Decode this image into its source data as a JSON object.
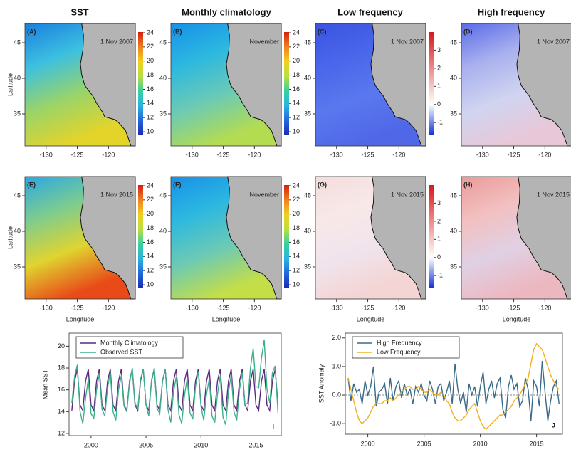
{
  "column_titles": [
    "SST",
    "Monthly climatology",
    "Low frequency",
    "High frequency"
  ],
  "chart_data": [
    {
      "type": "map",
      "label": "(A)",
      "date": "1 Nov 2007",
      "ylabel": "Latitude",
      "xlim": [
        -133.4,
        -115.7
      ],
      "ylim": [
        30.5,
        47.7
      ],
      "xticks": [
        -130,
        -125,
        -120
      ],
      "yticks": [
        35,
        40,
        45
      ],
      "field_colors": [
        "#1c7ee0",
        "#3cc0e0",
        "#9ad468",
        "#e4d42a"
      ],
      "colorbar": {
        "lim": [
          9.5,
          24.1
        ],
        "ticks": [
          10,
          12,
          14,
          16,
          18,
          20,
          22,
          24
        ],
        "colors": [
          "#1a2ab0",
          "#2466e0",
          "#28b4e0",
          "#38d0a0",
          "#b8e040",
          "#f0d020",
          "#f08020",
          "#d02010"
        ]
      }
    },
    {
      "type": "map",
      "label": "(B)",
      "date": "November",
      "xlim": [
        -133.4,
        -115.7
      ],
      "ylim": [
        30.5,
        47.7
      ],
      "xticks": [
        -130,
        -125,
        -120
      ],
      "yticks": [
        35,
        40,
        45
      ],
      "field_colors": [
        "#1890e8",
        "#2cb8e0",
        "#6ccab4",
        "#b4dc50"
      ],
      "colorbar": {
        "lim": [
          9.5,
          24.1
        ],
        "ticks": [
          10,
          12,
          14,
          16,
          18,
          20,
          22,
          24
        ],
        "colors": [
          "#1a2ab0",
          "#2466e0",
          "#28b4e0",
          "#38d0a0",
          "#b8e040",
          "#f0d020",
          "#f08020",
          "#d02010"
        ]
      }
    },
    {
      "type": "map",
      "label": "(C)",
      "date": "1 Nov 2007",
      "xlim": [
        -133.4,
        -115.7
      ],
      "ylim": [
        30.5,
        47.7
      ],
      "xticks": [
        -130,
        -125,
        -120
      ],
      "yticks": [
        35,
        40,
        45
      ],
      "field_colors": [
        "#3a54e0",
        "#4a66ea",
        "#5a78ee",
        "#5068e8"
      ],
      "colorbar": {
        "lim": [
          -1.7,
          4.0
        ],
        "ticks": [
          -1,
          0,
          1,
          2,
          3
        ],
        "colors": [
          "#1030d8",
          "#ffffff",
          "#d81818"
        ],
        "stops": [
          -1.7,
          0,
          4.0
        ]
      }
    },
    {
      "type": "map",
      "label": "(D)",
      "date": "1 Nov 2007",
      "xlim": [
        -133.4,
        -115.7
      ],
      "ylim": [
        30.5,
        47.7
      ],
      "xticks": [
        -130,
        -125,
        -120
      ],
      "yticks": [
        35,
        40,
        45
      ],
      "field_colors": [
        "#5a6ae8",
        "#a8b0ee",
        "#d0d4f0",
        "#e8c8d8"
      ],
      "colorbar": {
        "lim": [
          -1.7,
          4.0
        ],
        "colors": [
          "#1030d8",
          "#ffffff",
          "#d81818"
        ],
        "stops": [
          -1.7,
          0,
          4.0
        ]
      }
    },
    {
      "type": "map",
      "label": "(E)",
      "date": "1 Nov 2015",
      "ylabel": "Latitude",
      "xlabel": "Longitude",
      "xlim": [
        -133.4,
        -115.7
      ],
      "ylim": [
        30.5,
        47.7
      ],
      "xticks": [
        -130,
        -125,
        -120
      ],
      "yticks": [
        35,
        40,
        45
      ],
      "field_colors": [
        "#2aa8e4",
        "#7ccc90",
        "#e0d430",
        "#e84a18"
      ],
      "colorbar": {
        "lim": [
          9.5,
          24.1
        ],
        "ticks": [
          10,
          12,
          14,
          16,
          18,
          20,
          22,
          24
        ],
        "colors": [
          "#1a2ab0",
          "#2466e0",
          "#28b4e0",
          "#38d0a0",
          "#b8e040",
          "#f0d020",
          "#f08020",
          "#d02010"
        ]
      }
    },
    {
      "type": "map",
      "label": "(F)",
      "date": "November",
      "xlabel": "Longitude",
      "xlim": [
        -133.4,
        -115.7
      ],
      "ylim": [
        30.5,
        47.7
      ],
      "xticks": [
        -130,
        -125,
        -120
      ],
      "yticks": [
        35,
        40,
        45
      ],
      "field_colors": [
        "#1890e8",
        "#2cb8e0",
        "#6ccab4",
        "#c4de48"
      ],
      "colorbar": {
        "lim": [
          9.5,
          24.1
        ],
        "ticks": [
          10,
          12,
          14,
          16,
          18,
          20,
          22,
          24
        ],
        "colors": [
          "#1a2ab0",
          "#2466e0",
          "#28b4e0",
          "#38d0a0",
          "#b8e040",
          "#f0d020",
          "#f08020",
          "#d02010"
        ]
      }
    },
    {
      "type": "map",
      "label": "(G)",
      "date": "1 Nov 2015",
      "xlabel": "Longitude",
      "xlim": [
        -133.4,
        -115.7
      ],
      "ylim": [
        30.5,
        47.7
      ],
      "xticks": [
        -130,
        -125,
        -120
      ],
      "yticks": [
        35,
        40,
        45
      ],
      "field_colors": [
        "#f4dcdc",
        "#f8e8e8",
        "#f0e4ec",
        "#f4d4d4"
      ],
      "colorbar": {
        "lim": [
          -1.7,
          4.0
        ],
        "ticks": [
          -1,
          0,
          1,
          2,
          3
        ],
        "colors": [
          "#1030d8",
          "#ffffff",
          "#d81818"
        ],
        "stops": [
          -1.7,
          0,
          4.0
        ]
      }
    },
    {
      "type": "map",
      "label": "(H)",
      "date": "1 Nov 2015",
      "xlabel": "Longitude",
      "xlim": [
        -133.4,
        -115.7
      ],
      "ylim": [
        30.5,
        47.7
      ],
      "xticks": [
        -130,
        -125,
        -120
      ],
      "yticks": [
        35,
        40,
        45
      ],
      "field_colors": [
        "#ec9a9a",
        "#f2c0c0",
        "#e0d0e4",
        "#ecb8c0"
      ],
      "colorbar": {
        "lim": [
          -1.7,
          4.0
        ],
        "colors": [
          "#1030d8",
          "#ffffff",
          "#d81818"
        ],
        "stops": [
          -1.7,
          0,
          4.0
        ]
      }
    },
    {
      "type": "line",
      "label": "I",
      "ylabel": "Mean SST",
      "xlim": [
        1998,
        2017.3
      ],
      "ylim": [
        11.8,
        21.2
      ],
      "xticks": [
        2000,
        2005,
        2010,
        2015
      ],
      "yticks": [
        12,
        14,
        16,
        18,
        20
      ],
      "legend": "top-left",
      "x": [
        1998.25,
        1998.5,
        1998.75,
        1999,
        1999.25,
        1999.5,
        1999.75,
        2000,
        2000.25,
        2000.5,
        2000.75,
        2001,
        2001.25,
        2001.5,
        2001.75,
        2002,
        2002.25,
        2002.5,
        2002.75,
        2003,
        2003.25,
        2003.5,
        2003.75,
        2004,
        2004.25,
        2004.5,
        2004.75,
        2005,
        2005.25,
        2005.5,
        2005.75,
        2006,
        2006.25,
        2006.5,
        2006.75,
        2007,
        2007.25,
        2007.5,
        2007.75,
        2008,
        2008.25,
        2008.5,
        2008.75,
        2009,
        2009.25,
        2009.5,
        2009.75,
        2010,
        2010.25,
        2010.5,
        2010.75,
        2011,
        2011.25,
        2011.5,
        2011.75,
        2012,
        2012.25,
        2012.5,
        2012.75,
        2013,
        2013.25,
        2013.5,
        2013.75,
        2014,
        2014.25,
        2014.5,
        2014.75,
        2015,
        2015.25,
        2015.5,
        2015.75,
        2016,
        2016.25,
        2016.5,
        2016.75,
        2017
      ],
      "series": [
        {
          "name": "Monthly Climatology",
          "color": "#5c2a7e",
          "values": [
            14.1,
            16.8,
            17.9,
            14.6,
            14.1,
            16.8,
            17.9,
            14.6,
            14.1,
            16.8,
            17.9,
            14.6,
            14.1,
            16.8,
            17.9,
            14.6,
            14.1,
            16.8,
            17.9,
            14.6,
            14.1,
            16.8,
            17.9,
            14.6,
            14.1,
            16.8,
            17.9,
            14.6,
            14.1,
            16.8,
            17.9,
            14.6,
            14.1,
            16.8,
            17.9,
            14.6,
            14.1,
            16.8,
            17.9,
            14.6,
            14.1,
            16.8,
            17.9,
            14.6,
            14.1,
            16.8,
            17.9,
            14.6,
            14.1,
            16.8,
            17.9,
            14.6,
            14.1,
            16.8,
            17.9,
            14.6,
            14.1,
            16.8,
            17.9,
            14.6,
            14.1,
            16.8,
            17.9,
            14.6,
            14.1,
            16.8,
            17.9,
            14.6,
            14.1,
            16.8,
            17.9,
            14.6,
            14.1,
            16.8,
            17.9,
            14.6
          ]
        },
        {
          "name": "Observed SST",
          "color": "#3cb08a",
          "values": [
            14.8,
            17.2,
            18.3,
            14.0,
            12.9,
            15.2,
            17.0,
            13.8,
            13.4,
            16.0,
            17.5,
            14.2,
            13.6,
            16.2,
            17.6,
            14.0,
            13.2,
            16.0,
            17.3,
            14.5,
            14.0,
            16.6,
            18.0,
            14.8,
            14.2,
            17.0,
            17.9,
            14.6,
            13.6,
            16.9,
            18.0,
            14.3,
            13.8,
            16.9,
            17.9,
            14.2,
            13.0,
            15.8,
            17.2,
            13.7,
            12.9,
            15.5,
            17.1,
            13.9,
            13.3,
            16.3,
            17.7,
            14.5,
            13.2,
            15.6,
            17.0,
            13.6,
            13.0,
            15.6,
            17.3,
            13.5,
            12.8,
            15.8,
            17.4,
            14.0,
            13.2,
            16.0,
            17.6,
            14.6,
            14.8,
            18.0,
            19.8,
            16.3,
            16.2,
            18.9,
            20.6,
            16.1,
            14.8,
            17.6,
            18.2,
            13.9
          ]
        }
      ]
    },
    {
      "type": "line",
      "label": "J",
      "ylabel": "SST Anomaly",
      "zero_line": true,
      "xlim": [
        1998,
        2017.3
      ],
      "ylim": [
        -1.37,
        2.17
      ],
      "xticks": [
        2000,
        2005,
        2010,
        2015
      ],
      "yticks": [
        {
          "value": -1,
          "label": "-1.0"
        },
        {
          "value": 0,
          "label": "0.0"
        },
        {
          "value": 1,
          "label": "1.0"
        },
        {
          "value": 2,
          "label": "2.0"
        }
      ],
      "legend": "top-left",
      "x": [
        1998.25,
        1998.5,
        1998.75,
        1999,
        1999.25,
        1999.5,
        1999.75,
        2000,
        2000.25,
        2000.5,
        2000.75,
        2001,
        2001.25,
        2001.5,
        2001.75,
        2002,
        2002.25,
        2002.5,
        2002.75,
        2003,
        2003.25,
        2003.5,
        2003.75,
        2004,
        2004.25,
        2004.5,
        2004.75,
        2005,
        2005.25,
        2005.5,
        2005.75,
        2006,
        2006.25,
        2006.5,
        2006.75,
        2007,
        2007.25,
        2007.5,
        2007.75,
        2008,
        2008.25,
        2008.5,
        2008.75,
        2009,
        2009.25,
        2009.5,
        2009.75,
        2010,
        2010.25,
        2010.5,
        2010.75,
        2011,
        2011.25,
        2011.5,
        2011.75,
        2012,
        2012.25,
        2012.5,
        2012.75,
        2013,
        2013.25,
        2013.5,
        2013.75,
        2014,
        2014.25,
        2014.5,
        2014.75,
        2015,
        2015.25,
        2015.5,
        2015.75,
        2016,
        2016.25,
        2016.5,
        2016.75,
        2017
      ],
      "series": [
        {
          "name": "High Frequency",
          "color": "#3a6a8a",
          "values": [
            0.6,
            -0.2,
            0.4,
            0.1,
            0.2,
            -0.3,
            0.5,
            0.0,
            0.3,
            1.0,
            -0.4,
            0.1,
            0.2,
            0.4,
            -0.3,
            0.6,
            -0.2,
            0.3,
            0.5,
            -0.1,
            0.4,
            0.0,
            0.2,
            -0.3,
            0.3,
            0.1,
            0.4,
            0.0,
            -0.2,
            0.5,
            0.2,
            -0.3,
            0.3,
            0.4,
            -0.2,
            0.1,
            0.5,
            -0.3,
            1.1,
            0.2,
            -0.3,
            0.1,
            -0.6,
            0.4,
            0.0,
            0.3,
            -0.4,
            0.3,
            0.8,
            -0.3,
            0.2,
            0.5,
            -0.1,
            0.4,
            0.6,
            -0.5,
            -0.8,
            0.3,
            0.7,
            0.2,
            0.4,
            -0.4,
            -0.2,
            0.6,
            0.2,
            -0.9,
            0.5,
            0.3,
            -0.4,
            1.2,
            0.1,
            -0.9,
            -0.2,
            0.3,
            0.5,
            -0.3
          ]
        },
        {
          "name": "Low Frequency",
          "color": "#f0b020",
          "values": [
            0.6,
            0.2,
            -0.2,
            -0.6,
            -0.9,
            -1.0,
            -0.9,
            -0.8,
            -0.6,
            -0.4,
            -0.3,
            -0.3,
            -0.3,
            -0.2,
            -0.2,
            -0.1,
            -0.2,
            -0.1,
            0.0,
            0.1,
            0.2,
            0.3,
            0.3,
            0.2,
            0.2,
            0.3,
            0.2,
            0.1,
            0.1,
            0.2,
            0.1,
            0.0,
            0.0,
            0.1,
            0.0,
            -0.2,
            -0.3,
            -0.6,
            -0.8,
            -0.9,
            -0.9,
            -0.8,
            -0.7,
            -0.5,
            -0.4,
            -0.3,
            -0.6,
            -0.9,
            -1.1,
            -1.2,
            -1.1,
            -1.0,
            -0.9,
            -0.8,
            -0.7,
            -0.7,
            -0.6,
            -0.5,
            -0.4,
            -0.2,
            -0.1,
            0.0,
            0.2,
            0.4,
            0.6,
            1.1,
            1.6,
            1.8,
            1.7,
            1.6,
            1.3,
            1.0,
            0.7,
            0.5,
            0.3,
            0.2
          ]
        }
      ]
    }
  ]
}
